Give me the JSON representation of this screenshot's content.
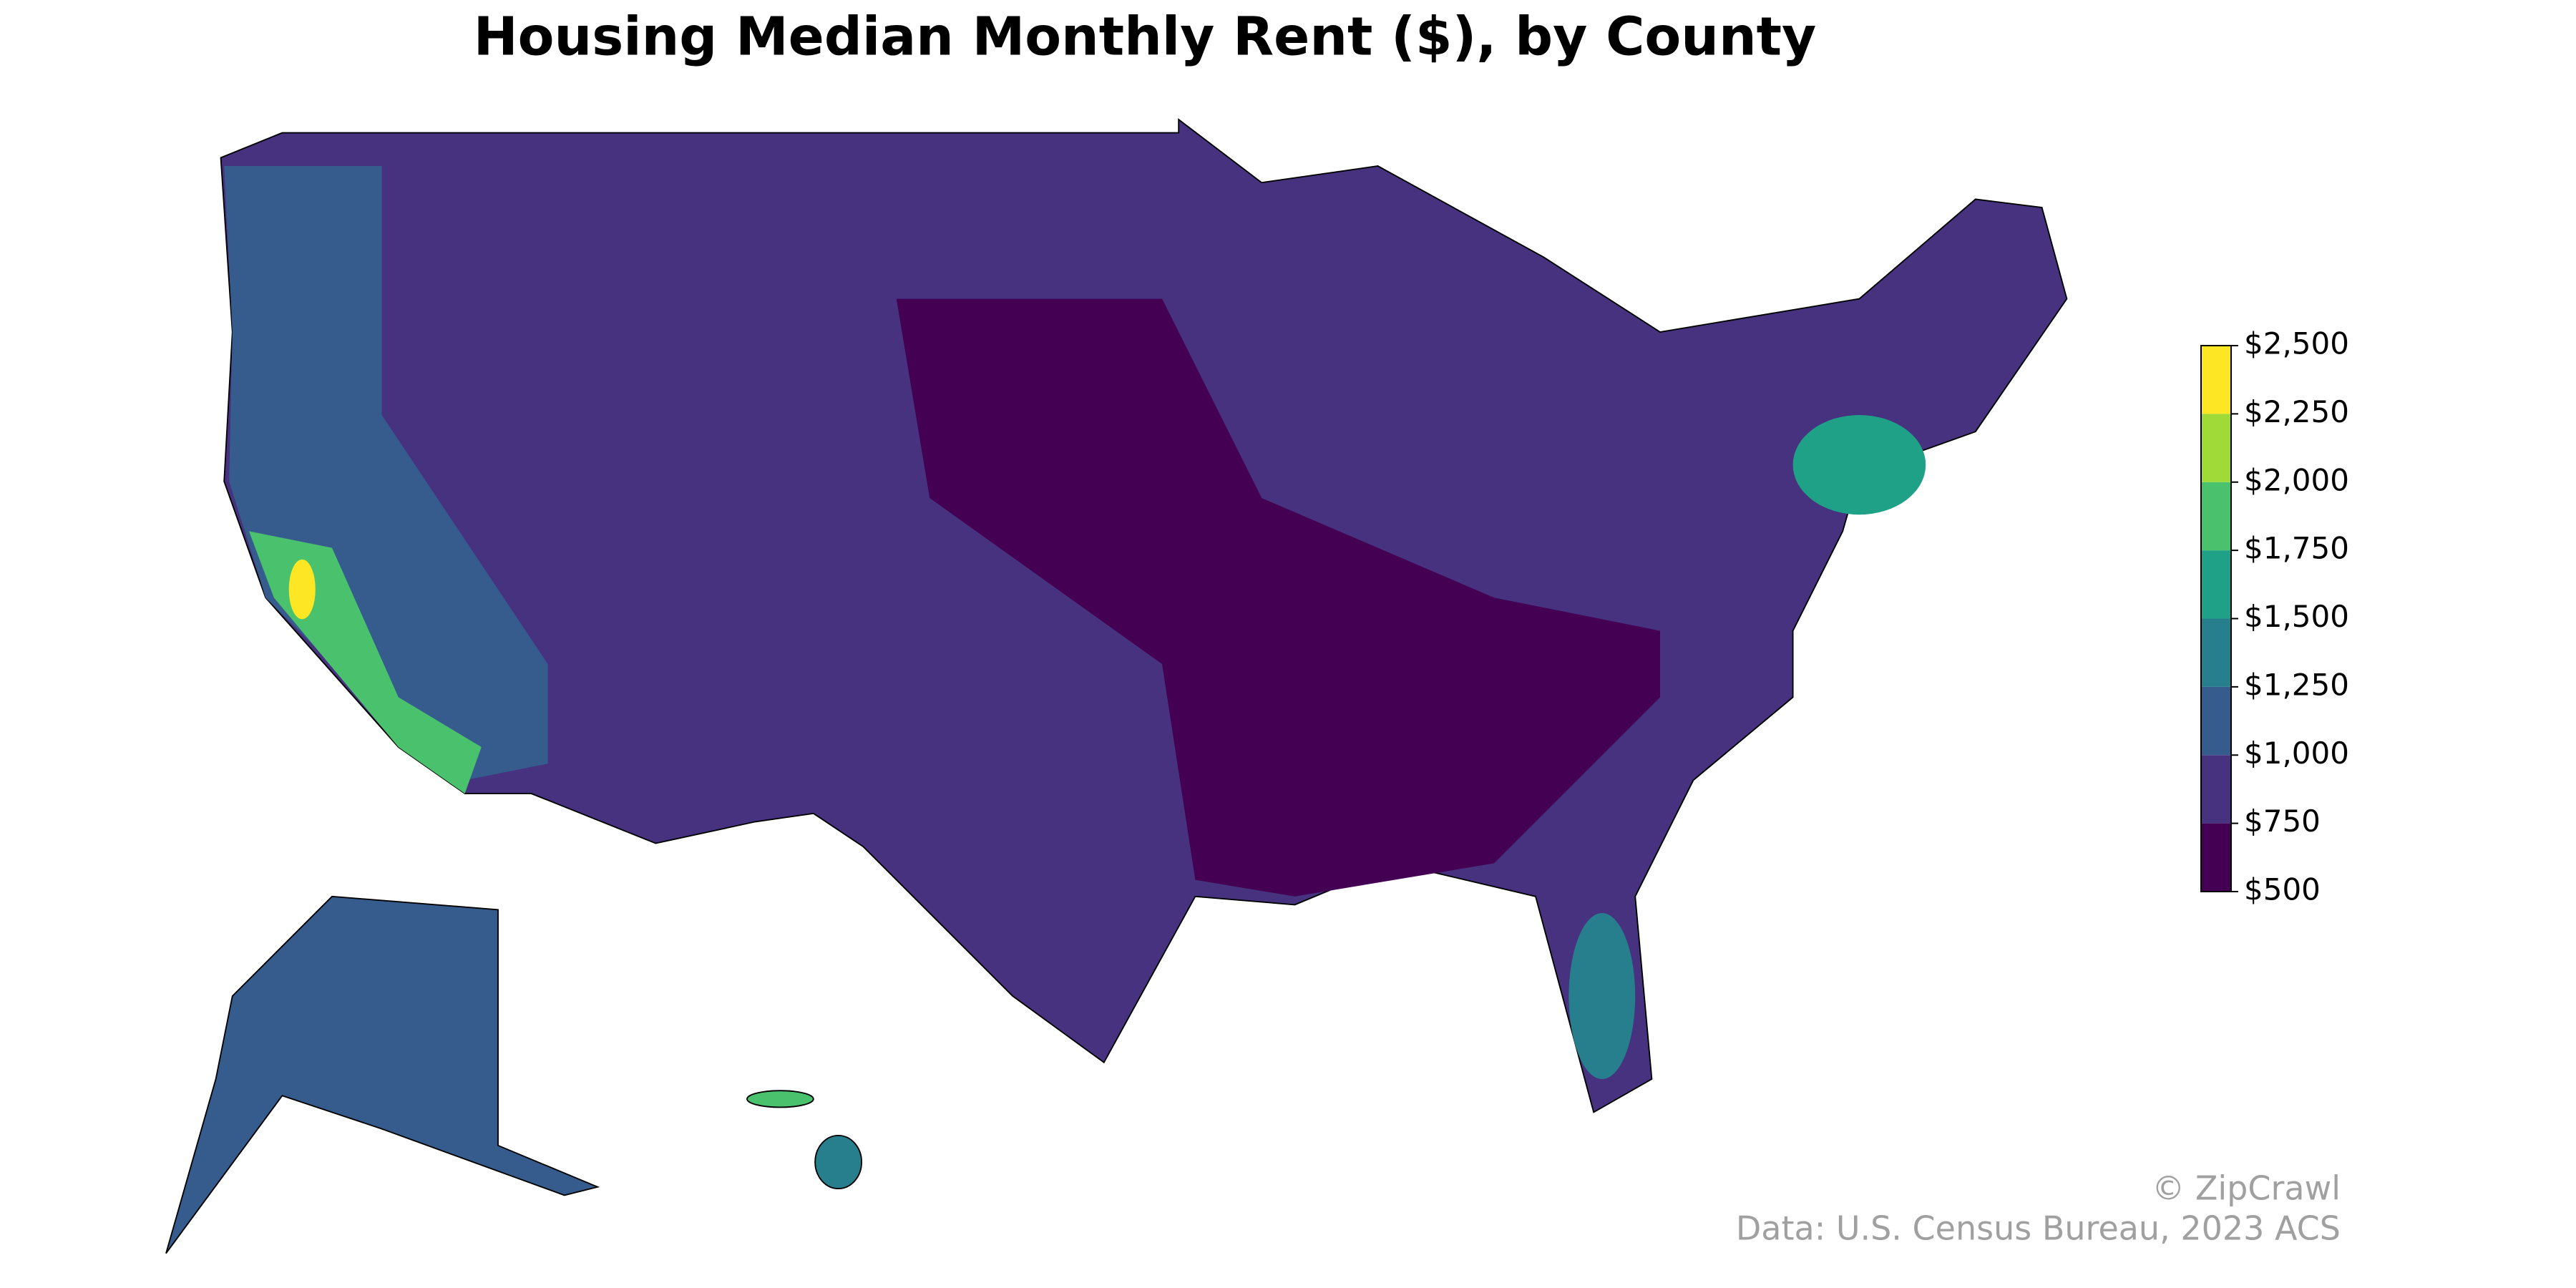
{
  "chart_data": {
    "type": "choropleth",
    "title": "Housing Median Monthly Rent ($), by County",
    "colorbar": {
      "ticks": [
        {
          "value": 500,
          "label": "$500"
        },
        {
          "value": 750,
          "label": "$750"
        },
        {
          "value": 1000,
          "label": "$1,000"
        },
        {
          "value": 1250,
          "label": "$1,250"
        },
        {
          "value": 1500,
          "label": "$1,500"
        },
        {
          "value": 1750,
          "label": "$1,750"
        },
        {
          "value": 2000,
          "label": "$2,000"
        },
        {
          "value": 2250,
          "label": "$2,250"
        },
        {
          "value": 2500,
          "label": "$2,500"
        }
      ],
      "colors": [
        "#440154",
        "#46327e",
        "#365c8d",
        "#277f8e",
        "#1fa187",
        "#4ac16d",
        "#a0da39",
        "#fde725"
      ],
      "lim": [
        500,
        2500
      ]
    },
    "credit": "© ZipCrawl",
    "source": "Data: U.S. Census Bureau, 2023 ACS"
  }
}
